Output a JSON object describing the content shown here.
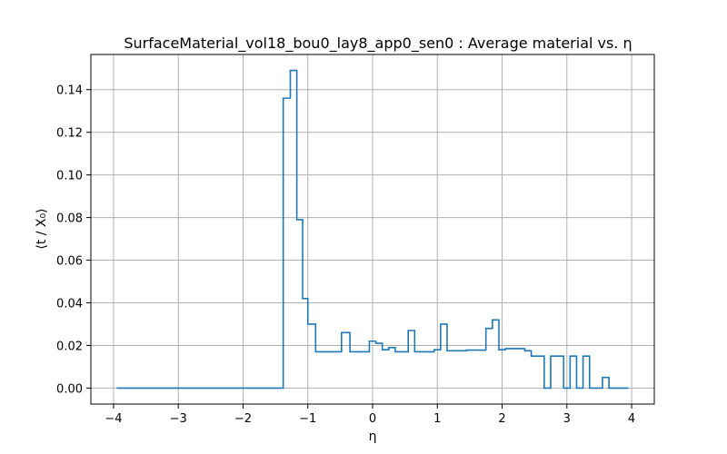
{
  "chart_data": {
    "type": "line",
    "drawstyle": "steps-post",
    "title": "SurfaceMaterial_vol18_bou0_lay8_app0_sen0 : Average material vs. η",
    "xlabel": "η",
    "ylabel": "⟨t / X₀⟩",
    "xlim": [
      -4.35,
      4.35
    ],
    "ylim": [
      -0.0075,
      0.1565
    ],
    "grid": true,
    "color": "#1f77b4",
    "xticks": [
      -4,
      -3,
      -2,
      -1,
      0,
      1,
      2,
      3,
      4
    ],
    "xtick_labels": [
      "−4",
      "−3",
      "−2",
      "−1",
      "0",
      "1",
      "2",
      "3",
      "4"
    ],
    "yticks": [
      0,
      0.02,
      0.04,
      0.06,
      0.08,
      0.1,
      0.12,
      0.14
    ],
    "ytick_labels": [
      "0.00",
      "0.02",
      "0.04",
      "0.06",
      "0.08",
      "0.10",
      "0.12",
      "0.14"
    ],
    "x": [
      -3.95,
      -1.38,
      -1.27,
      -1.17,
      -1.08,
      -1.0,
      -0.88,
      -0.48,
      -0.35,
      -0.2,
      -0.05,
      0.05,
      0.15,
      0.25,
      0.35,
      0.55,
      0.65,
      0.75,
      0.95,
      1.05,
      1.15,
      1.45,
      1.75,
      1.85,
      1.95,
      2.05,
      2.35,
      2.45,
      2.65,
      2.75,
      2.85,
      2.95,
      3.05,
      3.15,
      3.25,
      3.35,
      3.45,
      3.55,
      3.65,
      3.75,
      3.95
    ],
    "y": [
      0.0,
      0.136,
      0.149,
      0.079,
      0.042,
      0.03,
      0.017,
      0.026,
      0.017,
      0.017,
      0.022,
      0.021,
      0.018,
      0.019,
      0.017,
      0.027,
      0.017,
      0.017,
      0.018,
      0.03,
      0.0175,
      0.0178,
      0.028,
      0.032,
      0.018,
      0.0185,
      0.0175,
      0.015,
      0.0,
      0.015,
      0.015,
      0.0,
      0.015,
      0.0,
      0.015,
      0.0,
      0.0,
      0.005,
      0.0,
      0.0,
      0.0
    ]
  }
}
